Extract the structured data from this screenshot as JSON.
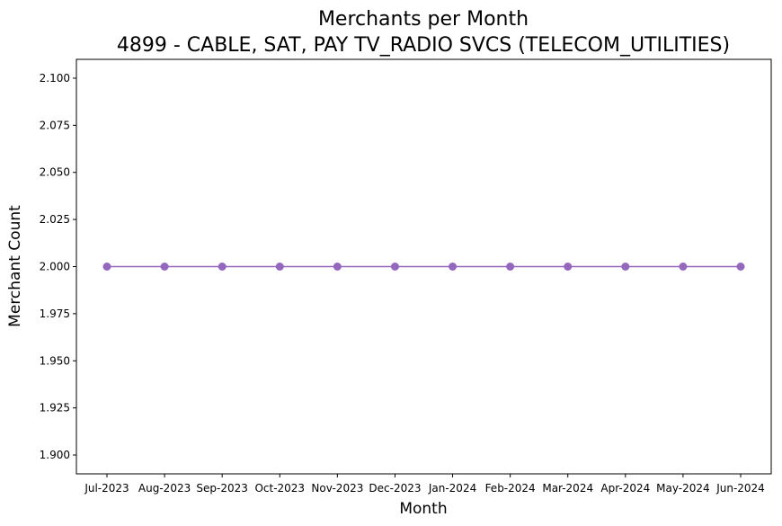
{
  "chart_data": {
    "type": "line",
    "title": "Merchants per Month",
    "subtitle": "4899 - CABLE, SAT, PAY TV_RADIO SVCS (TELECOM_UTILITIES)",
    "xlabel": "Month",
    "ylabel": "Merchant Count",
    "categories": [
      "Jul-2023",
      "Aug-2023",
      "Sep-2023",
      "Oct-2023",
      "Nov-2023",
      "Dec-2023",
      "Jan-2024",
      "Feb-2024",
      "Mar-2024",
      "Apr-2024",
      "May-2024",
      "Jun-2024"
    ],
    "series": [
      {
        "values": [
          2,
          2,
          2,
          2,
          2,
          2,
          2,
          2,
          2,
          2,
          2,
          2
        ],
        "color": "#9467bd",
        "marker": "circle"
      }
    ],
    "ylim": [
      1.89,
      2.11
    ],
    "yticks": [
      1.9,
      1.925,
      1.95,
      1.975,
      2.0,
      2.025,
      2.05,
      2.075,
      2.1
    ],
    "ytick_labels": [
      "1.900",
      "1.925",
      "1.950",
      "1.975",
      "2.000",
      "2.025",
      "2.050",
      "2.075",
      "2.100"
    ],
    "grid": false,
    "legend": "none"
  }
}
